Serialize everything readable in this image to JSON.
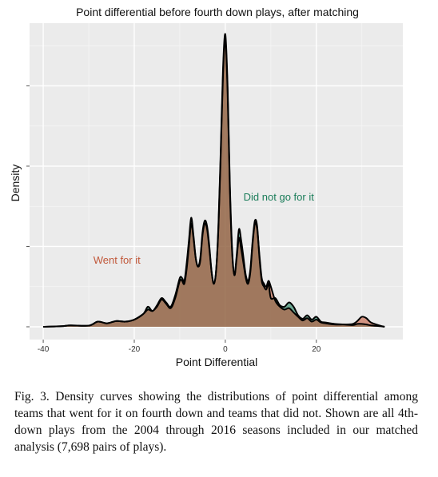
{
  "chart_data": {
    "type": "area",
    "title": "Point differential before fourth down plays, after matching",
    "xlabel": "Point Differential",
    "ylabel": "Density",
    "xlim": [
      -43,
      39
    ],
    "ylim": [
      0,
      1.0
    ],
    "x_ticks": [
      -40,
      -20,
      0,
      20
    ],
    "tick_labels": [
      "-40",
      "-20",
      "0",
      "20"
    ],
    "grid": true,
    "background": "#ebebeb",
    "series": [
      {
        "name": "Did not go for it",
        "color": "#1b7d5a",
        "x": [
          -40,
          -36,
          -34,
          -30,
          -28,
          -26,
          -24,
          -22,
          -20,
          -18,
          -17,
          -16,
          -15,
          -14,
          -13,
          -12,
          -11,
          -10,
          -9.5,
          -9,
          -8.5,
          -8,
          -7.5,
          -7,
          -6.5,
          -6,
          -5.5,
          -5,
          -4.5,
          -4,
          -3.5,
          -3,
          -2.5,
          -2,
          -1.5,
          -1,
          -0.5,
          0,
          0.5,
          1,
          1.5,
          2,
          2.5,
          3,
          3.5,
          4,
          4.5,
          5,
          5.5,
          6,
          6.5,
          7,
          7.5,
          8,
          8.5,
          9,
          9.5,
          10,
          11,
          12,
          13,
          14,
          15,
          16,
          17,
          18,
          19,
          20,
          21,
          22,
          24,
          26,
          28,
          29,
          30,
          31,
          32,
          34,
          35
        ],
        "values": [
          0,
          0.002,
          0.005,
          0.004,
          0.018,
          0.012,
          0.02,
          0.018,
          0.025,
          0.045,
          0.07,
          0.055,
          0.075,
          0.1,
          0.085,
          0.07,
          0.11,
          0.17,
          0.17,
          0.16,
          0.22,
          0.3,
          0.38,
          0.32,
          0.24,
          0.21,
          0.24,
          0.33,
          0.37,
          0.35,
          0.28,
          0.19,
          0.15,
          0.2,
          0.35,
          0.6,
          0.88,
          1.0,
          0.82,
          0.48,
          0.26,
          0.18,
          0.25,
          0.34,
          0.3,
          0.24,
          0.18,
          0.16,
          0.2,
          0.3,
          0.37,
          0.35,
          0.24,
          0.16,
          0.14,
          0.13,
          0.15,
          0.1,
          0.1,
          0.075,
          0.07,
          0.085,
          0.07,
          0.04,
          0.028,
          0.04,
          0.025,
          0.035,
          0.018,
          0.015,
          0.01,
          0.008,
          0.006,
          0.01,
          0.01,
          0.008,
          0.005,
          0.002,
          0
        ]
      },
      {
        "name": "Went for it",
        "color": "#c1583a",
        "x": [
          -40,
          -36,
          -34,
          -30,
          -28,
          -26,
          -24,
          -22,
          -20,
          -18,
          -17,
          -16,
          -15,
          -14,
          -13,
          -12,
          -11,
          -10,
          -9.5,
          -9,
          -8.5,
          -8,
          -7.5,
          -7,
          -6.5,
          -6,
          -5.5,
          -5,
          -4.5,
          -4,
          -3.5,
          -3,
          -2.5,
          -2,
          -1.5,
          -1,
          -0.5,
          0,
          0.5,
          1,
          1.5,
          2,
          2.5,
          3,
          3.5,
          4,
          4.5,
          5,
          5.5,
          6,
          6.5,
          7,
          7.5,
          8,
          8.5,
          9,
          9.5,
          10,
          11,
          12,
          13,
          14,
          15,
          16,
          17,
          18,
          19,
          20,
          21,
          22,
          24,
          26,
          28,
          29,
          30,
          31,
          32,
          34,
          35
        ],
        "values": [
          0,
          0.002,
          0.005,
          0.004,
          0.018,
          0.012,
          0.02,
          0.018,
          0.025,
          0.045,
          0.06,
          0.055,
          0.07,
          0.095,
          0.08,
          0.065,
          0.1,
          0.16,
          0.16,
          0.15,
          0.2,
          0.28,
          0.36,
          0.31,
          0.24,
          0.21,
          0.23,
          0.32,
          0.36,
          0.34,
          0.27,
          0.19,
          0.15,
          0.2,
          0.36,
          0.62,
          0.9,
          1.02,
          0.84,
          0.5,
          0.27,
          0.18,
          0.24,
          0.31,
          0.27,
          0.22,
          0.17,
          0.15,
          0.19,
          0.29,
          0.36,
          0.34,
          0.25,
          0.17,
          0.15,
          0.14,
          0.16,
          0.14,
          0.09,
          0.07,
          0.06,
          0.065,
          0.05,
          0.035,
          0.022,
          0.03,
          0.018,
          0.025,
          0.015,
          0.012,
          0.008,
          0.008,
          0.01,
          0.02,
          0.035,
          0.03,
          0.015,
          0.004,
          0
        ]
      }
    ],
    "annotations": [
      {
        "text": "Did not go for it",
        "x": 4,
        "y": 0.44,
        "color": "#1b7d5a"
      },
      {
        "text": "Went for it",
        "x": -29,
        "y": 0.22,
        "color": "#c1583a"
      }
    ]
  },
  "caption": "Fig. 3.  Density curves showing the distributions of point differential among teams that went for it on fourth down and teams that did not. Shown are all 4th-down plays from the 2004 through 2016 seasons included in our matched analysis (7,698 pairs of plays)."
}
